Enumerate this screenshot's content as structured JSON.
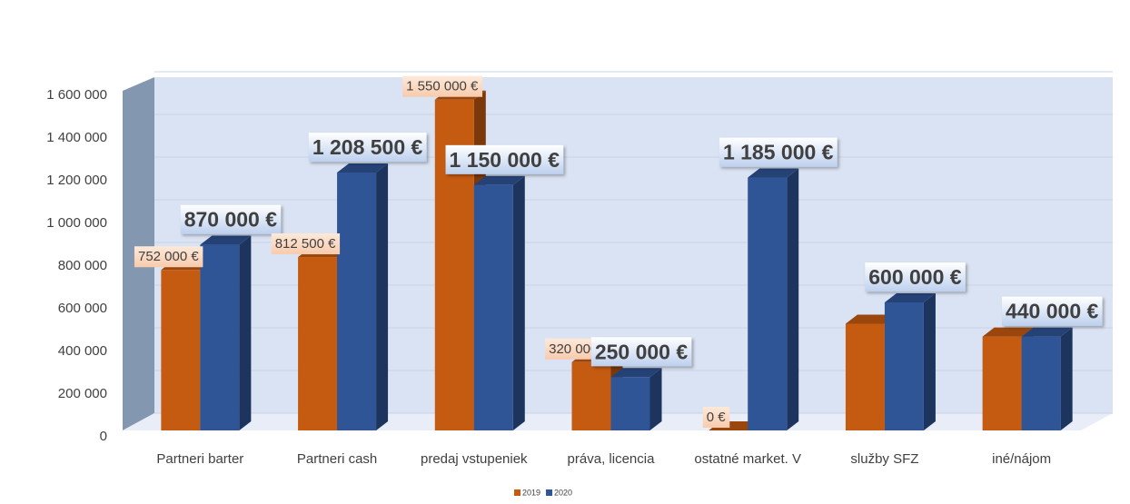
{
  "chart_data": {
    "type": "bar3d",
    "categories": [
      "Partneri barter",
      "Partneri cash",
      "predaj vstupeniek",
      "práva, licencia",
      "ostatné market. V",
      "služby SFZ",
      "iné/nájom"
    ],
    "series": [
      {
        "name": "2019",
        "color": "#c55a11",
        "values": [
          752000,
          812500,
          1550000,
          320000,
          0,
          500000,
          440000
        ],
        "value_labels": [
          "752 000 €",
          "812 500 €",
          "1 550 000 €",
          "320 000 €",
          "0 €",
          null,
          null
        ]
      },
      {
        "name": "2020",
        "color": "#2f5597",
        "values": [
          870000,
          1208500,
          1150000,
          250000,
          1185000,
          600000,
          440000
        ],
        "value_labels": [
          "870 000 €",
          "1 208 500 €",
          "1 150 000 €",
          "250 000 €",
          "1 185 000 €",
          "600 000 €",
          "440 000 €"
        ]
      }
    ],
    "ylim": [
      0,
      1600000
    ],
    "yticks": [
      0,
      {
        "value": 200000,
        "label": "200 000"
      },
      {
        "value": 400000,
        "label": "400 000"
      },
      {
        "value": 600000,
        "label": "600 000"
      },
      {
        "value": 800000,
        "label": "800 000"
      },
      {
        "value": 1000000,
        "label": "1 000 000"
      },
      {
        "value": 1200000,
        "label": "1 200 000"
      },
      {
        "value": 1400000,
        "label": "1 400 000"
      },
      {
        "value": 1600000,
        "label": "1 600 000"
      }
    ],
    "grid": true,
    "legend": "bottom"
  }
}
